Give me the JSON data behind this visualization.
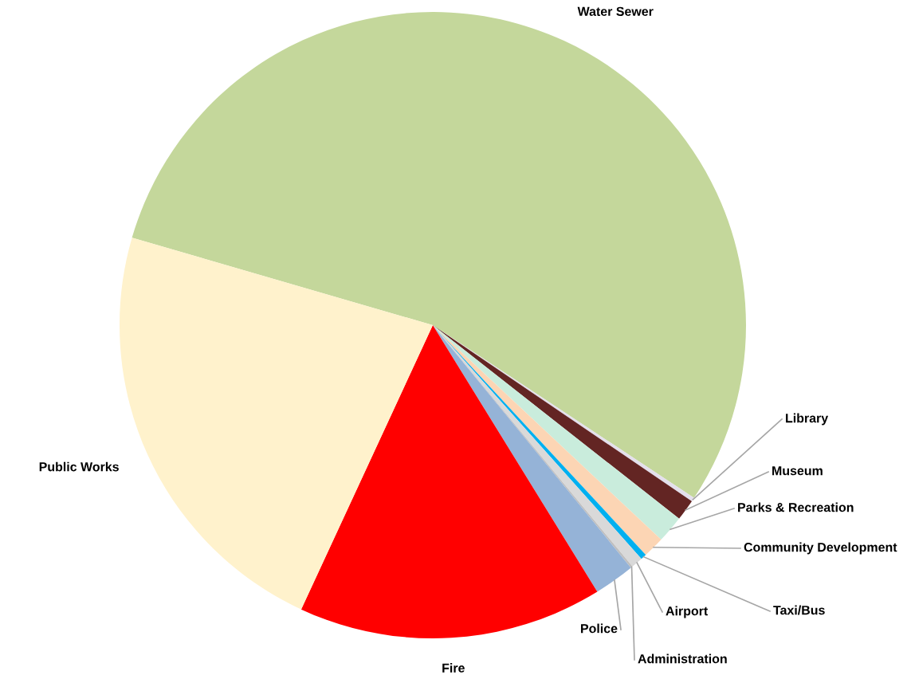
{
  "chart_data": {
    "type": "pie",
    "categories": [
      "Water Sewer",
      "Library",
      "Museum",
      "Parks & Recreation",
      "Community Development",
      "Taxi/Bus",
      "Airport",
      "Administration",
      "Police",
      "Fire",
      "Public Works"
    ],
    "values": [
      54.8,
      0.2,
      1.1,
      1.4,
      1.1,
      0.3,
      0.6,
      0.1,
      2.1,
      15.7,
      22.6
    ],
    "colors": [
      "#c4d79b",
      "#e4dfec",
      "#632523",
      "#c9ecdc",
      "#fcd5b4",
      "#00b0f0",
      "#d9d9d9",
      "#bfbfbf",
      "#95b3d7",
      "#ff0000",
      "#fff2cc"
    ],
    "legend": false
  }
}
